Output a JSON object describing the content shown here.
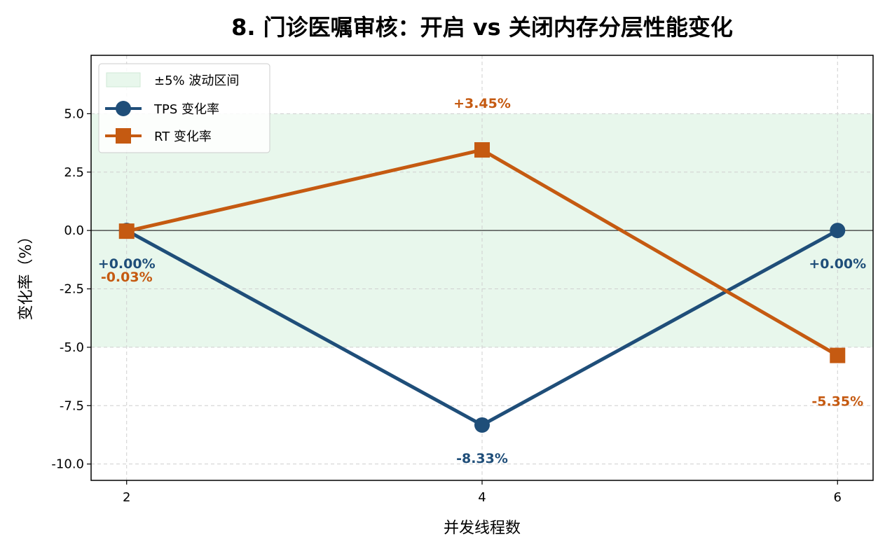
{
  "chart_data": {
    "type": "line",
    "title": "8. 门诊医嘱审核：开启 vs 关闭内存分层性能变化",
    "xlabel": "并发线程数",
    "ylabel": "变化率（%）",
    "x": [
      2,
      4,
      6
    ],
    "x_tick_labels": [
      "2",
      "4",
      "6"
    ],
    "xlim": [
      1.8,
      6.2
    ],
    "ylim": [
      -10.7,
      7.5
    ],
    "y_ticks": [
      5.0,
      2.5,
      0.0,
      -2.5,
      -5.0,
      -7.5,
      -10.0
    ],
    "y_tick_labels": [
      "5.0",
      "2.5",
      "0.0",
      "-2.5",
      "-5.0",
      "-7.5",
      "-10.0"
    ],
    "grid": true,
    "band": {
      "name": "±5% 波动区间",
      "low": -5,
      "high": 5,
      "color": "#e8f7ec"
    },
    "legend_position": "top-left",
    "series": [
      {
        "name": "TPS 变化率",
        "color": "#1f4e79",
        "marker": "circle",
        "values": [
          0.0,
          -8.33,
          0.0
        ],
        "labels": [
          "+0.00%",
          "-8.33%",
          "+0.00%"
        ]
      },
      {
        "name": "RT 变化率",
        "color": "#c55a11",
        "marker": "square",
        "values": [
          -0.03,
          3.45,
          -5.35
        ],
        "labels": [
          "-0.03%",
          "+3.45%",
          "-5.35%"
        ]
      }
    ]
  }
}
